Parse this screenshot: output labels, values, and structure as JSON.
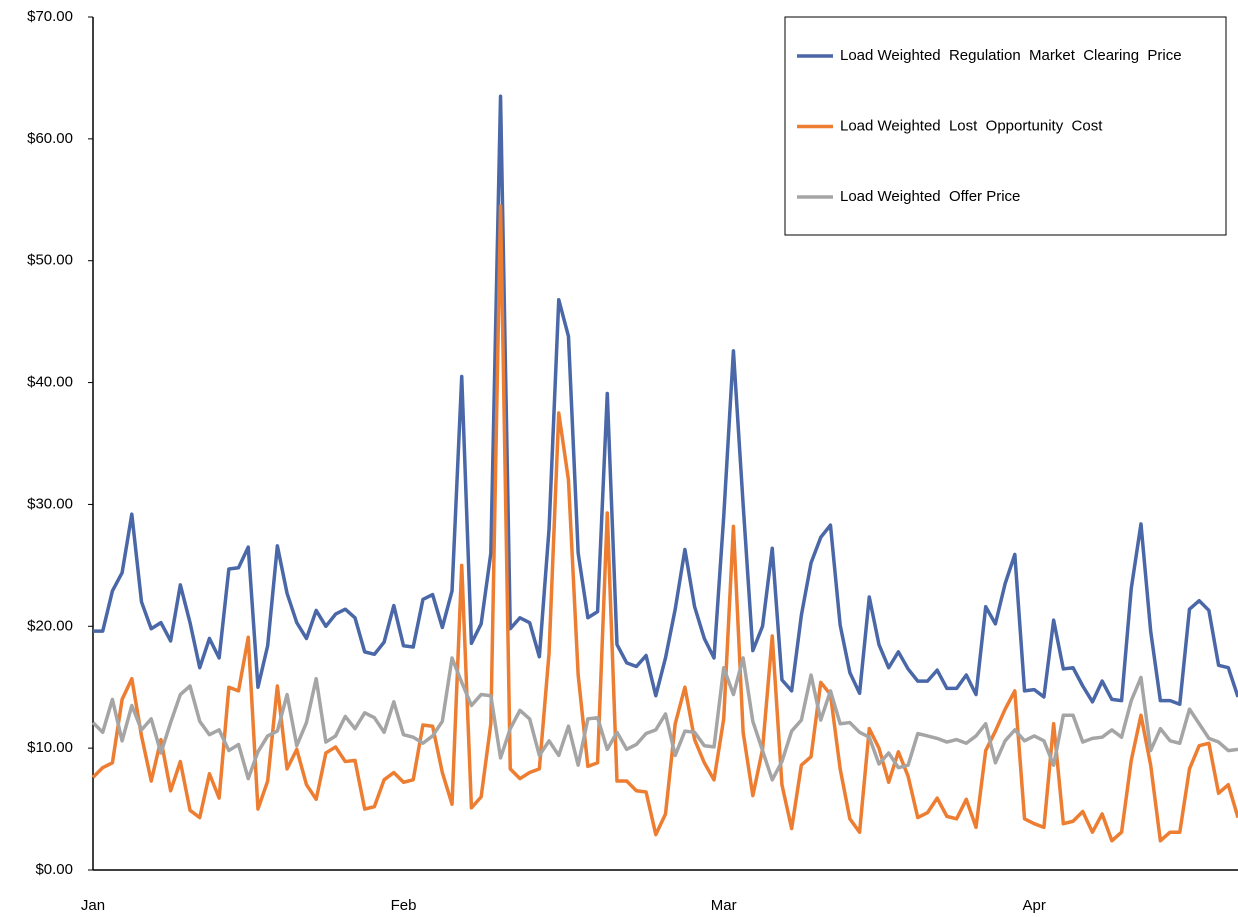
{
  "chart_data": {
    "type": "line",
    "categories": [
      "Jan",
      null,
      null,
      null,
      null,
      null,
      null,
      null,
      null,
      null,
      null,
      null,
      null,
      null,
      null,
      null,
      null,
      null,
      null,
      null,
      null,
      null,
      null,
      null,
      null,
      null,
      null,
      null,
      null,
      null,
      null,
      null,
      "Feb",
      null,
      null,
      null,
      null,
      null,
      null,
      null,
      null,
      null,
      null,
      null,
      null,
      null,
      null,
      null,
      null,
      null,
      null,
      null,
      null,
      null,
      null,
      null,
      null,
      null,
      null,
      null,
      null,
      null,
      null,
      null,
      null,
      "Mar",
      null,
      null,
      null,
      null,
      null,
      null,
      null,
      null,
      null,
      null,
      null,
      null,
      null,
      null,
      null,
      null,
      null,
      null,
      null,
      null,
      null,
      null,
      null,
      null,
      null,
      null,
      null,
      null,
      null,
      null,
      null,
      "Apr",
      null,
      null,
      null,
      null,
      null,
      null,
      null,
      null,
      null,
      null,
      null,
      null,
      null,
      null,
      null,
      null,
      null,
      null,
      null,
      null,
      null
    ],
    "series": [
      {
        "name": "Load Weighted  Regulation  Market  Clearing  Price",
        "color": "#4a67a7",
        "values": [
          19.6,
          19.6,
          22.9,
          24.4,
          29.2,
          22.0,
          19.8,
          20.3,
          18.8,
          23.4,
          20.3,
          16.6,
          19.0,
          17.4,
          24.7,
          24.8,
          26.5,
          15.0,
          18.4,
          26.6,
          22.7,
          20.3,
          19.0,
          21.3,
          20.0,
          21.0,
          21.4,
          20.7,
          17.9,
          17.7,
          18.7,
          21.7,
          18.4,
          18.3,
          22.2,
          22.6,
          19.9,
          22.9,
          40.5,
          18.6,
          20.2,
          26.0,
          63.5,
          19.8,
          20.7,
          20.3,
          17.5,
          28.0,
          46.8,
          43.8,
          26.0,
          20.7,
          21.2,
          39.1,
          18.5,
          17.0,
          16.7,
          17.6,
          14.3,
          17.4,
          21.4,
          26.3,
          21.6,
          19.0,
          17.4,
          29.0,
          42.6,
          30.0,
          18.0,
          20.0,
          26.4,
          15.6,
          14.7,
          20.9,
          25.2,
          27.3,
          28.3,
          20.1,
          16.2,
          14.5,
          22.4,
          18.5,
          16.6,
          17.9,
          16.5,
          15.5,
          15.5,
          16.4,
          14.9,
          14.9,
          16.0,
          14.4,
          21.6,
          20.2,
          23.5,
          25.9,
          14.7,
          14.8,
          14.2,
          20.5,
          16.5,
          16.6,
          15.1,
          13.8,
          15.5,
          14.0,
          13.9,
          23.1,
          28.4,
          19.6,
          13.9,
          13.9,
          13.6,
          21.4,
          22.1,
          21.3,
          16.8,
          16.6,
          14.2
        ]
      },
      {
        "name": "Load Weighted  Lost  Opportunity  Cost",
        "color": "#ed7d31",
        "values": [
          7.6,
          8.4,
          8.8,
          14.0,
          15.7,
          11.0,
          7.3,
          10.7,
          6.5,
          8.9,
          4.9,
          4.3,
          7.9,
          5.9,
          15.0,
          14.7,
          19.1,
          5.0,
          7.3,
          15.1,
          8.3,
          9.9,
          7.0,
          5.8,
          9.6,
          10.1,
          8.9,
          9.0,
          5.0,
          5.2,
          7.4,
          8.0,
          7.2,
          7.4,
          11.9,
          11.8,
          8.0,
          5.4,
          25.0,
          5.1,
          6.0,
          12.0,
          54.5,
          8.3,
          7.5,
          8.0,
          8.3,
          17.8,
          37.5,
          32.0,
          16.0,
          8.5,
          8.8,
          29.3,
          7.3,
          7.3,
          6.5,
          6.4,
          2.9,
          4.6,
          12.0,
          15.0,
          10.7,
          8.8,
          7.4,
          12.4,
          28.2,
          11.3,
          6.1,
          9.9,
          19.2,
          7.0,
          3.4,
          8.6,
          9.3,
          15.4,
          14.4,
          8.3,
          4.2,
          3.1,
          11.6,
          10.0,
          7.2,
          9.7,
          7.7,
          4.3,
          4.7,
          5.9,
          4.4,
          4.2,
          5.8,
          3.5,
          9.8,
          11.4,
          13.2,
          14.7,
          4.2,
          3.8,
          3.5,
          12.0,
          3.8,
          4.0,
          4.8,
          3.1,
          4.6,
          2.4,
          3.1,
          9.0,
          12.7,
          8.6,
          2.4,
          3.1,
          3.1,
          8.3,
          10.2,
          10.4,
          6.3,
          7.0,
          4.3
        ]
      },
      {
        "name": "Load Weighted  Offer Price",
        "color": "#a5a5a5",
        "values": [
          12.1,
          11.3,
          14.0,
          10.6,
          13.5,
          11.5,
          12.4,
          9.6,
          12.1,
          14.4,
          15.1,
          12.2,
          11.1,
          11.5,
          9.8,
          10.3,
          7.5,
          9.7,
          11.0,
          11.4,
          14.4,
          10.2,
          12.1,
          15.7,
          10.5,
          11.0,
          12.6,
          11.6,
          12.9,
          12.5,
          11.3,
          13.8,
          11.1,
          10.9,
          10.4,
          11.0,
          12.2,
          17.4,
          15.4,
          13.5,
          14.4,
          14.3,
          9.2,
          11.6,
          13.1,
          12.4,
          9.4,
          10.6,
          9.4,
          11.8,
          8.6,
          12.4,
          12.5,
          9.9,
          11.3,
          9.9,
          10.3,
          11.2,
          11.5,
          12.8,
          9.4,
          11.4,
          11.3,
          10.2,
          10.1,
          16.6,
          14.4,
          17.4,
          12.2,
          9.8,
          7.4,
          8.9,
          11.4,
          12.3,
          16.0,
          12.3,
          14.7,
          12.0,
          12.1,
          11.3,
          10.9,
          8.7,
          9.6,
          8.4,
          8.6,
          11.2,
          11.0,
          10.8,
          10.5,
          10.7,
          10.4,
          11.0,
          12.0,
          8.8,
          10.6,
          11.5,
          10.6,
          11.0,
          10.6,
          8.6,
          12.7,
          12.7,
          10.5,
          10.8,
          10.9,
          11.5,
          10.9,
          13.9,
          15.8,
          9.8,
          11.6,
          10.6,
          10.4,
          13.2,
          12.0,
          10.8,
          10.5,
          9.8,
          9.9
        ]
      }
    ],
    "ylim": [
      0,
      70
    ],
    "yticks": [
      {
        "value": 0,
        "label": "$0.00"
      },
      {
        "value": 10,
        "label": "$10.00"
      },
      {
        "value": 20,
        "label": "$20.00"
      },
      {
        "value": 30,
        "label": "$30.00"
      },
      {
        "value": 40,
        "label": "$40.00"
      },
      {
        "value": 50,
        "label": "$50.00"
      },
      {
        "value": 60,
        "label": "$60.00"
      },
      {
        "value": 70,
        "label": "$70.00"
      }
    ],
    "grid": false,
    "legend": "top-right"
  }
}
